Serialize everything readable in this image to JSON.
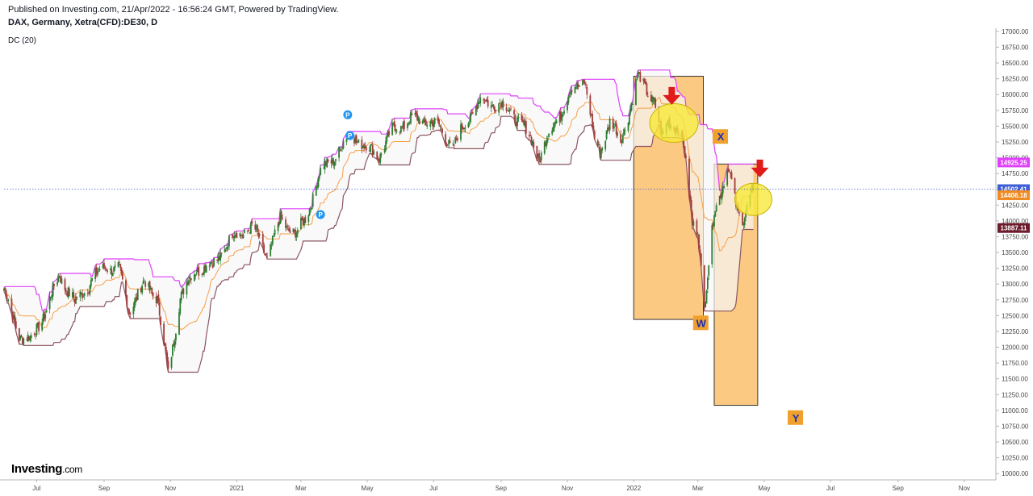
{
  "header": {
    "published": "Published on Investing.com, 21/Apr/2022 - 16:56:24 GMT, Powered by TradingView.",
    "symbol": "DAX, Germany, Xetra(CFD):DE30, D",
    "indicator": "DC (20)"
  },
  "logo": {
    "name": "Investing",
    "suffix": ".com"
  },
  "colors": {
    "upper": "#e040fb",
    "middle": "#f5a04a",
    "lower": "#8b5560",
    "up_candle": "#2e7d32",
    "down_candle": "#a33c3c",
    "box_fill": "#fcbf6d",
    "circle_fill": "#f7e83a",
    "arrow": "#e11a1a",
    "p_marker": "#2196f3",
    "last_price_line": "#3f5fd6"
  },
  "chart_data": {
    "type": "candlestick",
    "y_axis_side": "right",
    "ylim": [
      9900,
      17050
    ],
    "y_ticks": [
      "10000.00",
      "10250.00",
      "10500.00",
      "10750.00",
      "11000.00",
      "11250.00",
      "11500.00",
      "11750.00",
      "12000.00",
      "12250.00",
      "12500.00",
      "12750.00",
      "13000.00",
      "13250.00",
      "13500.00",
      "13750.00",
      "14000.00",
      "14250.00",
      "14500.00",
      "14750.00",
      "15000.00",
      "15250.00",
      "15500.00",
      "15750.00",
      "16000.00",
      "16250.00",
      "16500.00",
      "16750.00",
      "17000.00"
    ],
    "x_range": [
      "2020-06-01",
      "2022-11-30"
    ],
    "x_ticks": [
      {
        "label": "Jul",
        "date": "2020-07-01"
      },
      {
        "label": "Sep",
        "date": "2020-09-01"
      },
      {
        "label": "Nov",
        "date": "2020-11-01"
      },
      {
        "label": "2021",
        "date": "2021-01-01"
      },
      {
        "label": "Mar",
        "date": "2021-03-01"
      },
      {
        "label": "May",
        "date": "2021-05-01"
      },
      {
        "label": "Jul",
        "date": "2021-07-01"
      },
      {
        "label": "Sep",
        "date": "2021-09-01"
      },
      {
        "label": "Nov",
        "date": "2021-11-01"
      },
      {
        "label": "2022",
        "date": "2022-01-01"
      },
      {
        "label": "Mar",
        "date": "2022-03-01"
      },
      {
        "label": "May",
        "date": "2022-05-01"
      },
      {
        "label": "Jul",
        "date": "2022-07-01"
      },
      {
        "label": "Sep",
        "date": "2022-09-01"
      },
      {
        "label": "Nov",
        "date": "2022-11-01"
      }
    ],
    "price_path": [
      [
        "2020-06-01",
        12900
      ],
      [
        "2020-06-15",
        12200
      ],
      [
        "2020-06-25",
        12100
      ],
      [
        "2020-07-10",
        12600
      ],
      [
        "2020-07-22",
        13150
      ],
      [
        "2020-08-05",
        12700
      ],
      [
        "2020-08-20",
        13050
      ],
      [
        "2020-09-03",
        13300
      ],
      [
        "2020-09-15",
        13200
      ],
      [
        "2020-09-24",
        12600
      ],
      [
        "2020-10-08",
        13000
      ],
      [
        "2020-10-20",
        12800
      ],
      [
        "2020-10-30",
        11550
      ],
      [
        "2020-11-10",
        12800
      ],
      [
        "2020-11-25",
        13250
      ],
      [
        "2020-12-10",
        13300
      ],
      [
        "2020-12-28",
        13750
      ],
      [
        "2021-01-15",
        13900
      ],
      [
        "2021-01-29",
        13450
      ],
      [
        "2021-02-10",
        14000
      ],
      [
        "2021-02-25",
        13800
      ],
      [
        "2021-03-05",
        14000
      ],
      [
        "2021-03-18",
        14750
      ],
      [
        "2021-03-31",
        15000
      ],
      [
        "2021-04-16",
        15400
      ],
      [
        "2021-04-30",
        15150
      ],
      [
        "2021-05-12",
        15050
      ],
      [
        "2021-05-25",
        15450
      ],
      [
        "2021-06-10",
        15600
      ],
      [
        "2021-06-25",
        15600
      ],
      [
        "2021-07-08",
        15450
      ],
      [
        "2021-07-19",
        15150
      ],
      [
        "2021-07-30",
        15550
      ],
      [
        "2021-08-13",
        15900
      ],
      [
        "2021-08-31",
        15850
      ],
      [
        "2021-09-15",
        15650
      ],
      [
        "2021-09-30",
        15250
      ],
      [
        "2021-10-06",
        15000
      ],
      [
        "2021-10-20",
        15550
      ],
      [
        "2021-11-05",
        16050
      ],
      [
        "2021-11-17",
        16250
      ],
      [
        "2021-11-26",
        15250
      ],
      [
        "2021-12-01",
        15100
      ],
      [
        "2021-12-10",
        15600
      ],
      [
        "2021-12-20",
        15250
      ],
      [
        "2022-01-05",
        16270
      ],
      [
        "2022-01-20",
        15900
      ],
      [
        "2022-01-27",
        15300
      ],
      [
        "2022-02-02",
        15600
      ],
      [
        "2022-02-10",
        15500
      ],
      [
        "2022-02-16",
        15150
      ],
      [
        "2022-02-24",
        14000
      ],
      [
        "2022-03-01",
        13900
      ],
      [
        "2022-03-07",
        12550
      ],
      [
        "2022-03-16",
        14200
      ],
      [
        "2022-03-29",
        14800
      ],
      [
        "2022-04-06",
        14200
      ],
      [
        "2022-04-12",
        14050
      ],
      [
        "2022-04-21",
        14502
      ]
    ],
    "series": [
      {
        "name": "DC (20)"
      }
    ],
    "last_values": {
      "upper": "14925.25",
      "close": "14502.41",
      "middle": "14406.18",
      "lower": "13887.11"
    },
    "annotations": {
      "labels": [
        "W",
        "X",
        "Y"
      ],
      "p_markers": [
        "P",
        "P",
        "P"
      ],
      "boxes": [
        {
          "from_date": "2022-01-01",
          "to_date": "2022-03-06",
          "high": 16290,
          "low": 12440
        },
        {
          "from_date": "2022-03-16",
          "to_date": "2022-04-25",
          "high": 14900,
          "low": 11080
        }
      ]
    }
  }
}
